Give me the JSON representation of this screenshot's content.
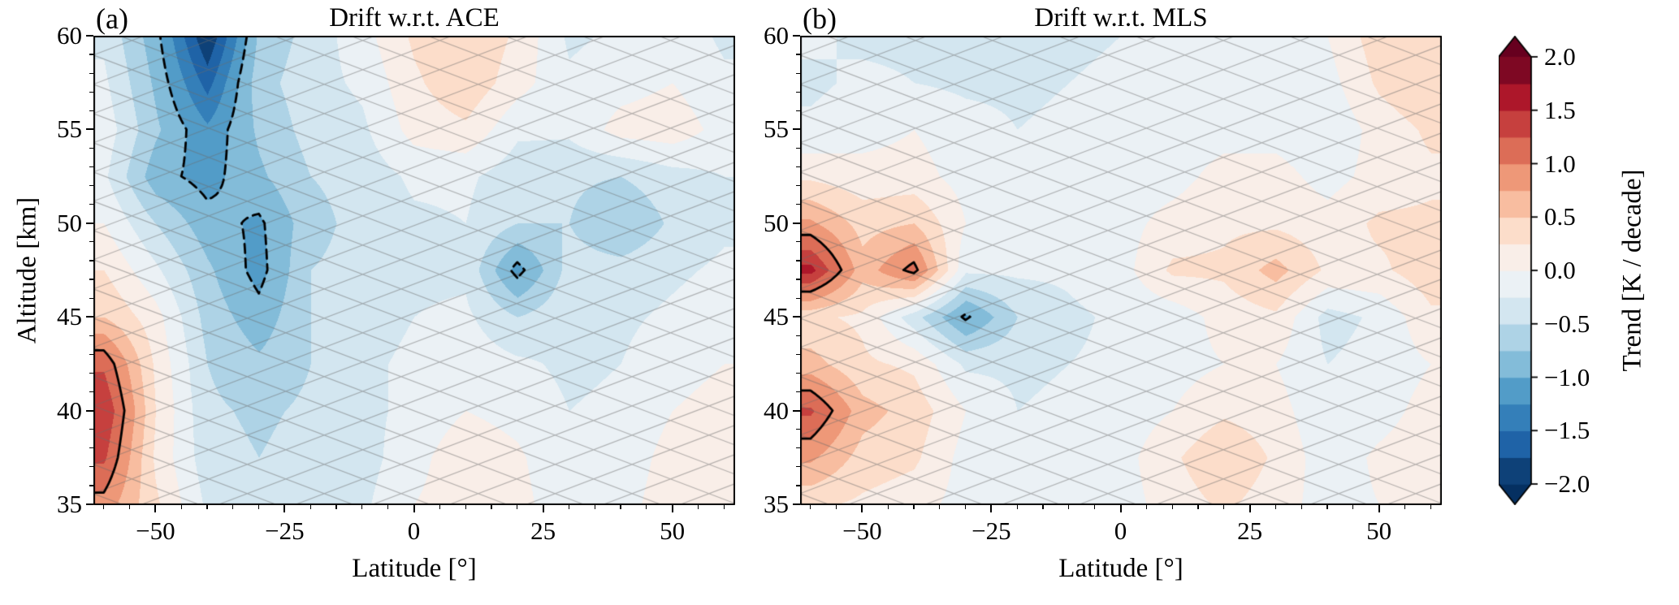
{
  "figure": {
    "panels": [
      {
        "tag": "(a)",
        "title": "Drift w.r.t. ACE",
        "xlabel": "Latitude [°]",
        "ylabel": "Altitude [km]",
        "xtick_values": [
          -50,
          -25,
          0,
          25,
          50
        ],
        "xtick_labels": [
          "−50",
          "−25",
          "0",
          "25",
          "50"
        ],
        "ytick_values": [
          35,
          40,
          45,
          50,
          55,
          60
        ],
        "ytick_labels": [
          "35",
          "40",
          "45",
          "50",
          "55",
          "60"
        ]
      },
      {
        "tag": "(b)",
        "title": "Drift w.r.t. MLS",
        "xlabel": "Latitude [°]",
        "ylabel": "",
        "xtick_values": [
          -50,
          -25,
          0,
          25,
          50
        ],
        "xtick_labels": [
          "−50",
          "−25",
          "0",
          "25",
          "50"
        ],
        "ytick_values": [
          35,
          40,
          45,
          50,
          55,
          60
        ],
        "ytick_labels": [
          "35",
          "40",
          "45",
          "50",
          "55",
          "60"
        ]
      }
    ],
    "axes": {
      "xlim": [
        -62,
        62
      ],
      "ylim": [
        35,
        60
      ],
      "xminor_step": 5,
      "yminor_step": 1
    },
    "colorbar": {
      "label": "Trend [K / decade]",
      "tick_values": [
        2,
        1.5,
        1,
        0.5,
        0,
        -0.5,
        -1,
        -1.5,
        -2
      ],
      "tick_labels": [
        "2.0",
        "1.5",
        "1.0",
        "0.5",
        "0.0",
        "−0.5",
        "−1.0",
        "−1.5",
        "−2.0"
      ],
      "vmin": -2.0,
      "vmax": 2.0,
      "band_step": 0.25,
      "band_colors": [
        "#0e4178",
        "#1f63a7",
        "#347fb9",
        "#529cc8",
        "#83bcd9",
        "#aed3e6",
        "#d3e6f0",
        "#ebf1f5",
        "#f9eee8",
        "#fcddca",
        "#f8bda0",
        "#ee9878",
        "#dc6d57",
        "#c6403e",
        "#ad172a",
        "#7e0823"
      ],
      "under_color": "#053061",
      "over_color": "#67001f"
    },
    "hatch": {
      "pattern": "x",
      "color": "#6e6e6e"
    },
    "contour_lines": {
      "positive_level": 1.0,
      "positive_style": "solid",
      "negative_level": -1.0,
      "negative_style": "dashed"
    }
  },
  "chart_data": [
    {
      "type": "heatmap",
      "title": "Drift w.r.t. ACE",
      "xlabel": "Latitude [°]",
      "ylabel": "Altitude [km]",
      "units": "K / decade",
      "xlim": [
        -62,
        62
      ],
      "ylim": [
        35,
        60
      ],
      "fill_range": [
        -2,
        2
      ],
      "fill_step": 0.25,
      "line_contours": [
        {
          "level": 1.0,
          "style": "solid"
        },
        {
          "level": -1.0,
          "style": "dashed"
        }
      ],
      "hatch": "x",
      "x_latitude": [
        -60,
        -50,
        -40,
        -30,
        -20,
        -10,
        0,
        10,
        20,
        30,
        40,
        50,
        60
      ],
      "y_altitude_km": [
        35,
        37.5,
        40,
        42.5,
        45,
        47.5,
        50,
        52.5,
        55,
        57.5,
        60
      ],
      "values": [
        [
          0.9,
          0.3,
          -0.3,
          -0.4,
          -0.3,
          -0.3,
          0.0,
          0.15,
          0.1,
          -0.2,
          -0.1,
          0.15,
          0.2
        ],
        [
          1.3,
          0.2,
          -0.4,
          -0.5,
          -0.4,
          -0.35,
          -0.1,
          0.2,
          0.05,
          -0.25,
          -0.15,
          0.1,
          0.15
        ],
        [
          1.5,
          0.25,
          -0.45,
          -0.55,
          -0.45,
          -0.3,
          -0.2,
          0.0,
          -0.1,
          -0.25,
          -0.2,
          0.0,
          0.1
        ],
        [
          1.2,
          0.2,
          -0.5,
          -0.7,
          -0.5,
          -0.3,
          -0.2,
          -0.1,
          -0.2,
          -0.3,
          -0.25,
          -0.1,
          0.0
        ],
        [
          0.5,
          0.1,
          -0.6,
          -0.9,
          -0.5,
          -0.35,
          -0.25,
          -0.2,
          -0.5,
          -0.3,
          -0.3,
          -0.2,
          -0.1
        ],
        [
          0.25,
          -0.2,
          -0.7,
          -1.1,
          -0.5,
          -0.4,
          -0.3,
          -0.3,
          -1.1,
          -0.4,
          -0.4,
          -0.3,
          -0.2
        ],
        [
          0.0,
          -0.5,
          -0.9,
          -1.05,
          -0.6,
          -0.4,
          -0.3,
          -0.25,
          -0.5,
          -0.5,
          -0.75,
          -0.45,
          -0.3
        ],
        [
          -0.2,
          -0.9,
          -1.1,
          -0.8,
          -0.5,
          -0.4,
          -0.2,
          -0.2,
          -0.4,
          -0.45,
          -0.5,
          -0.35,
          -0.25
        ],
        [
          -0.1,
          -0.7,
          -1.2,
          -0.7,
          -0.4,
          -0.3,
          0.1,
          0.2,
          -0.2,
          -0.2,
          0.1,
          0.15,
          -0.1
        ],
        [
          -0.2,
          -0.8,
          -1.6,
          -0.6,
          -0.35,
          -0.2,
          0.2,
          0.45,
          0.1,
          -0.2,
          -0.1,
          0.0,
          -0.2
        ],
        [
          -0.3,
          -0.9,
          -2.0,
          -0.7,
          -0.4,
          -0.1,
          0.3,
          0.5,
          0.2,
          -0.3,
          -0.2,
          -0.1,
          -0.3
        ]
      ]
    },
    {
      "type": "heatmap",
      "title": "Drift w.r.t. MLS",
      "xlabel": "Latitude [°]",
      "ylabel": "Altitude [km]",
      "units": "K / decade",
      "xlim": [
        -62,
        62
      ],
      "ylim": [
        35,
        60
      ],
      "fill_range": [
        -2,
        2
      ],
      "fill_step": 0.25,
      "line_contours": [
        {
          "level": 1.0,
          "style": "solid"
        },
        {
          "level": -1.0,
          "style": "dashed"
        }
      ],
      "hatch": "x",
      "x_latitude": [
        -60,
        -50,
        -40,
        -30,
        -20,
        -10,
        0,
        10,
        20,
        30,
        40,
        50,
        60
      ],
      "y_altitude_km": [
        35,
        37.5,
        40,
        42.5,
        45,
        47.5,
        50,
        52.5,
        55,
        57.5,
        60
      ],
      "values": [
        [
          0.3,
          0.2,
          0.1,
          -0.1,
          -0.15,
          -0.1,
          -0.1,
          0.1,
          0.3,
          0.1,
          -0.1,
          0.0,
          0.1
        ],
        [
          0.8,
          0.4,
          0.3,
          -0.1,
          -0.2,
          -0.15,
          -0.1,
          0.2,
          0.5,
          0.2,
          -0.15,
          0.05,
          0.15
        ],
        [
          1.3,
          0.6,
          0.4,
          0.0,
          -0.25,
          -0.2,
          -0.15,
          0.0,
          0.2,
          0.1,
          -0.2,
          -0.1,
          0.1
        ],
        [
          0.6,
          0.3,
          0.2,
          -0.3,
          -0.3,
          -0.25,
          -0.2,
          -0.1,
          0.0,
          0.0,
          -0.25,
          -0.15,
          0.0
        ],
        [
          0.3,
          0.2,
          -0.4,
          -1.05,
          -0.5,
          -0.3,
          -0.2,
          -0.15,
          0.1,
          0.2,
          -0.35,
          -0.2,
          0.2
        ],
        [
          1.6,
          0.6,
          1.1,
          -0.2,
          -0.2,
          -0.2,
          -0.1,
          0.3,
          0.3,
          0.6,
          0.2,
          0.2,
          0.4
        ],
        [
          0.8,
          0.4,
          0.5,
          0.0,
          -0.1,
          -0.15,
          -0.1,
          0.1,
          0.2,
          0.2,
          0.1,
          0.3,
          0.3
        ],
        [
          0.2,
          0.1,
          0.1,
          -0.1,
          -0.2,
          -0.2,
          -0.15,
          -0.1,
          0.1,
          0.1,
          -0.1,
          0.1,
          0.2
        ],
        [
          -0.2,
          -0.1,
          0.0,
          -0.15,
          -0.25,
          -0.2,
          -0.2,
          -0.15,
          -0.1,
          -0.1,
          -0.2,
          0.1,
          0.3
        ],
        [
          -0.3,
          -0.2,
          -0.25,
          -0.3,
          -0.3,
          -0.25,
          -0.2,
          -0.2,
          -0.15,
          -0.2,
          -0.1,
          0.3,
          0.5
        ],
        [
          -0.2,
          -0.3,
          -0.3,
          -0.35,
          -0.3,
          -0.3,
          -0.25,
          -0.2,
          -0.2,
          -0.25,
          0.0,
          0.4,
          0.4
        ]
      ]
    }
  ]
}
